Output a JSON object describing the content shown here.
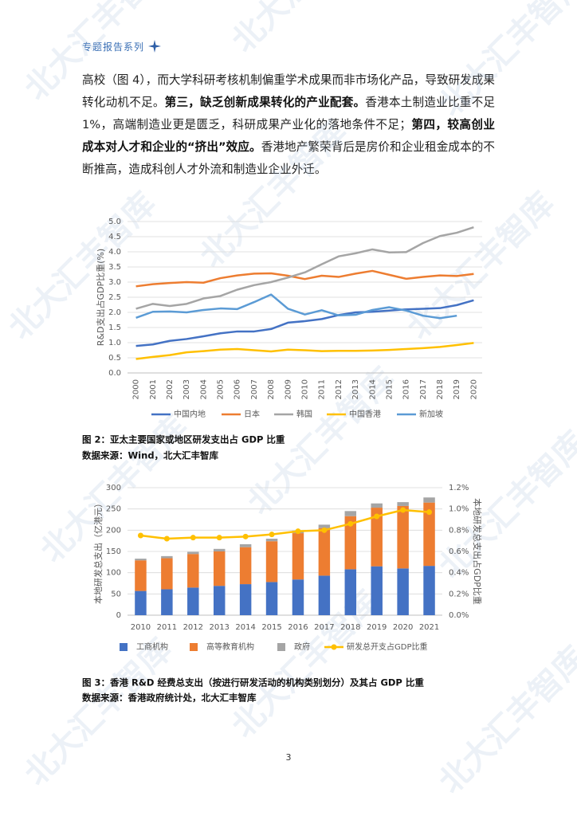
{
  "header": {
    "title": "专题报告系列"
  },
  "paragraph": {
    "runs": [
      {
        "text": "高校（图 4），而大学科研考核机制偏重学术成果而非市场化产品，导致研发成果转化动机不足。",
        "bold": false
      },
      {
        "text": "第三，缺乏创新成果转化的产业配套。",
        "bold": true
      },
      {
        "text": "香港本土制造业比重不足1%，高端制造业更是匮乏，科研成果产业化的落地条件不足；",
        "bold": false
      },
      {
        "text": "第四，较高创业成本对人才和企业的“挤出”效应。",
        "bold": true
      },
      {
        "text": "香港地产繁荣背后是房价和企业租金成本的不断推高，造成科创人才外流和制造业企业外迁。",
        "bold": false
      }
    ]
  },
  "watermark": "北大汇丰智库",
  "page_number": "3",
  "chart_data": [
    {
      "type": "line",
      "title": "图 2：亚太主要国家或地区研发支出占 GDP 比重",
      "source": "数据来源：Wind，北大汇丰智库",
      "ylabel": "R&D支出占GDP比重(%)",
      "grid": true,
      "legend": "bottom",
      "categories": [
        "2000",
        "2001",
        "2002",
        "2003",
        "2004",
        "2005",
        "2006",
        "2007",
        "2008",
        "2009",
        "2010",
        "2011",
        "2012",
        "2013",
        "2014",
        "2015",
        "2016",
        "2017",
        "2018",
        "2019",
        "2020"
      ],
      "ylim": [
        0,
        5
      ],
      "yticks": [
        {
          "value": 0,
          "label": "0.0"
        },
        {
          "value": 0.5,
          "label": "0.5"
        },
        {
          "value": 1,
          "label": "1.0"
        },
        {
          "value": 1.5,
          "label": "1.5"
        },
        {
          "value": 2,
          "label": "2.0"
        },
        {
          "value": 2.5,
          "label": "2.5"
        },
        {
          "value": 3,
          "label": "3.0"
        },
        {
          "value": 3.5,
          "label": "3.5"
        },
        {
          "value": 4,
          "label": "4.0"
        },
        {
          "value": 4.5,
          "label": "4.5"
        },
        {
          "value": 5,
          "label": "5.0"
        }
      ],
      "series": [
        {
          "name": "中国内地",
          "color": "#4472c4",
          "values": [
            0.89,
            0.94,
            1.06,
            1.12,
            1.21,
            1.31,
            1.37,
            1.37,
            1.45,
            1.66,
            1.71,
            1.78,
            1.91,
            2.0,
            2.02,
            2.06,
            2.1,
            2.12,
            2.14,
            2.24,
            2.4
          ]
        },
        {
          "name": "日本",
          "color": "#ed7d31",
          "values": [
            2.86,
            2.93,
            2.97,
            3.0,
            2.98,
            3.13,
            3.22,
            3.28,
            3.29,
            3.21,
            3.1,
            3.21,
            3.17,
            3.28,
            3.37,
            3.24,
            3.11,
            3.17,
            3.22,
            3.2,
            3.27
          ]
        },
        {
          "name": "韩国",
          "color": "#a5a5a5",
          "values": [
            2.12,
            2.28,
            2.21,
            2.28,
            2.46,
            2.54,
            2.75,
            2.9,
            3.0,
            3.15,
            3.32,
            3.59,
            3.85,
            3.95,
            4.08,
            3.98,
            3.99,
            4.29,
            4.52,
            4.63,
            4.81
          ]
        },
        {
          "name": "中国香港",
          "color": "#ffc000",
          "values": [
            0.46,
            0.53,
            0.59,
            0.68,
            0.72,
            0.77,
            0.79,
            0.75,
            0.71,
            0.77,
            0.75,
            0.72,
            0.73,
            0.73,
            0.74,
            0.76,
            0.79,
            0.82,
            0.86,
            0.92,
            0.99
          ]
        },
        {
          "name": "新加坡",
          "color": "#5b9bd5",
          "values": [
            1.82,
            2.02,
            2.03,
            2.0,
            2.08,
            2.13,
            2.11,
            2.34,
            2.59,
            2.12,
            1.93,
            2.07,
            1.9,
            1.92,
            2.08,
            2.17,
            2.06,
            1.89,
            1.81,
            1.89,
            null
          ]
        }
      ]
    },
    {
      "type": "bar",
      "stacked": true,
      "title": "图 3：香港 R&D 经费总支出（按进行研发活动的机构类别划分）及其占 GDP 比重",
      "source": "数据来源：香港政府统计处，北大汇丰智库",
      "ylabel": "本地研发总支出（亿港元）",
      "y2label": "本地研发总支出占GDP比重",
      "grid": true,
      "legend": "bottom",
      "categories": [
        "2010",
        "2011",
        "2012",
        "2013",
        "2014",
        "2015",
        "2016",
        "2017",
        "2018",
        "2019",
        "2020",
        "2021"
      ],
      "ylim": [
        0,
        300
      ],
      "yticks": [
        0,
        50,
        100,
        150,
        200,
        250,
        300
      ],
      "y2lim": [
        0,
        1.2
      ],
      "y2ticks": [
        {
          "value": 0,
          "label": "0.0%"
        },
        {
          "value": 0.2,
          "label": "0.2%"
        },
        {
          "value": 0.4,
          "label": "0.4%"
        },
        {
          "value": 0.6,
          "label": "0.6%"
        },
        {
          "value": 0.8,
          "label": "0.8%"
        },
        {
          "value": 1.0,
          "label": "1.0%"
        },
        {
          "value": 1.2,
          "label": "1.2%"
        }
      ],
      "series": [
        {
          "name": "工商机构",
          "color": "#4472c4",
          "values": [
            57,
            61,
            65,
            69,
            73,
            78,
            84,
            93,
            108,
            115,
            110,
            116
          ]
        },
        {
          "name": "高等教育机构",
          "color": "#ed7d31",
          "values": [
            72,
            73,
            79,
            81,
            87,
            96,
            109,
            112,
            125,
            138,
            147,
            149
          ]
        },
        {
          "name": "政府",
          "color": "#a5a5a5",
          "values": [
            4,
            5,
            5,
            6,
            7,
            6,
            6,
            8,
            12,
            10,
            9,
            12
          ]
        },
        {
          "name": "研发总开支占GDP比重",
          "color": "#ffc000",
          "type": "line",
          "axis": "y2",
          "values": [
            0.75,
            0.72,
            0.73,
            0.73,
            0.74,
            0.76,
            0.79,
            0.8,
            0.86,
            0.93,
            0.99,
            0.97
          ]
        }
      ]
    }
  ]
}
